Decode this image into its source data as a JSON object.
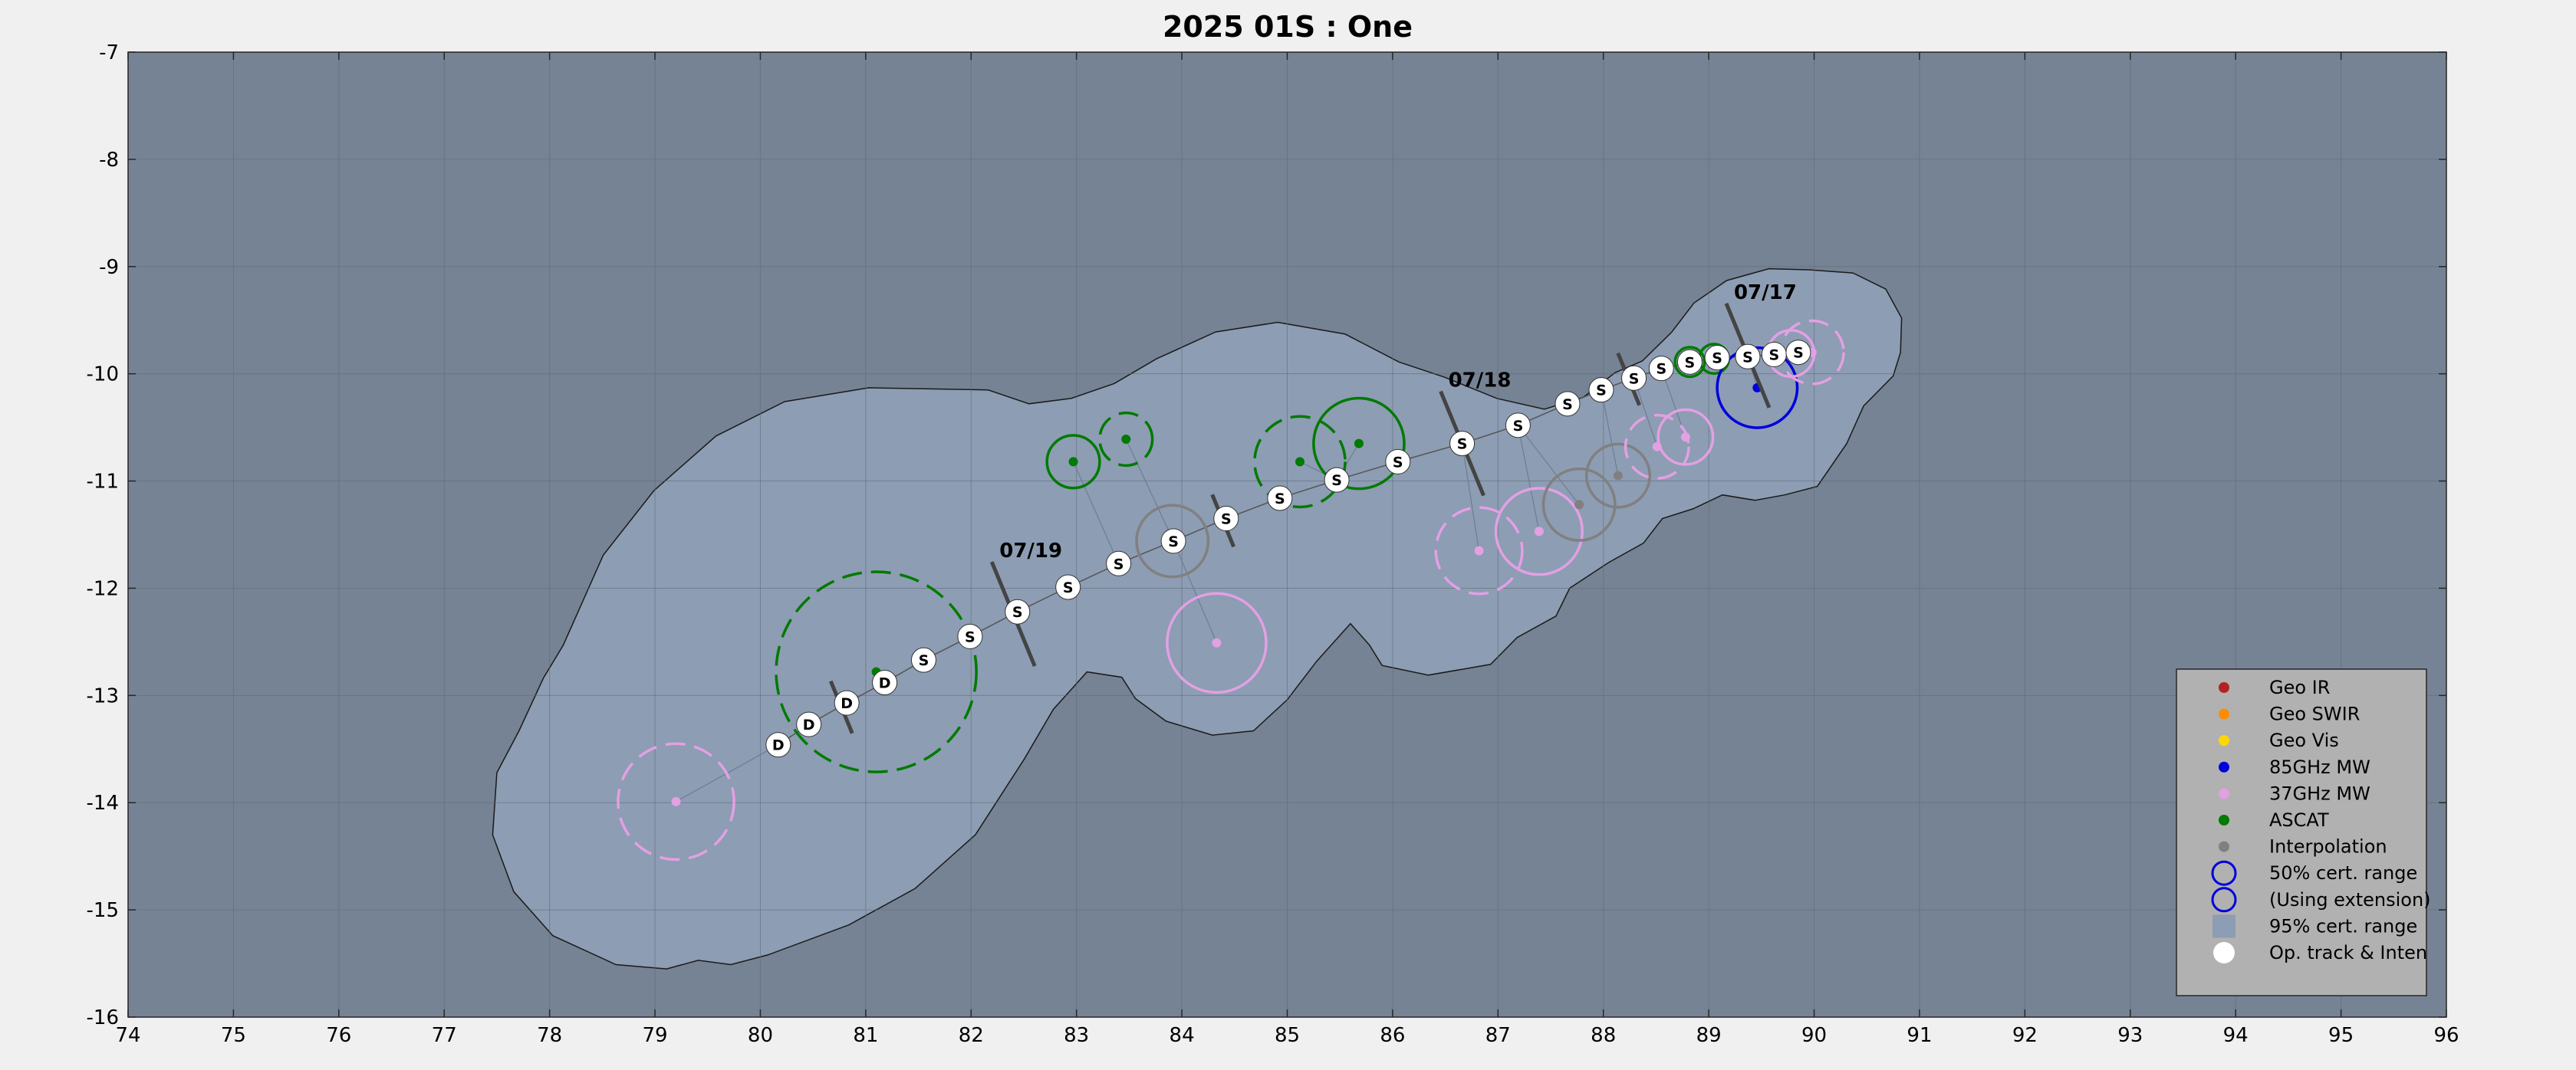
{
  "chart_data": {
    "type": "scatter",
    "title": "2025  01S :  One",
    "xlim": [
      74,
      96
    ],
    "ylim": [
      -16,
      -7
    ],
    "xticks": [
      "74",
      "75",
      "76",
      "77",
      "78",
      "79",
      "80",
      "81",
      "82",
      "83",
      "84",
      "85",
      "86",
      "87",
      "88",
      "89",
      "90",
      "91",
      "92",
      "93",
      "94",
      "95",
      "96"
    ],
    "yticks": [
      "-7",
      "-8",
      "-9",
      "-10",
      "-11",
      "-12",
      "-13",
      "-14",
      "-15",
      "-16"
    ],
    "grid": true,
    "colors": {
      "figure_bg": "#f0f0f0",
      "axes_bg": "#768394",
      "cert95": "#8d9db3",
      "grid": "#5f6b79",
      "geo_ir": "#b22222",
      "geo_swir": "#ff8c00",
      "geo_vis": "#ffd700",
      "mw85": "#0000dd",
      "mw37": "#e3a0e3",
      "ascat": "#007a00",
      "interp": "#808080",
      "track": "#ffffff"
    },
    "track": [
      {
        "x": 89.37,
        "y": -9.84,
        "label": "S"
      },
      {
        "x": 89.62,
        "y": -9.82,
        "label": "S"
      },
      {
        "x": 89.85,
        "y": -9.8,
        "label": "S"
      },
      {
        "x": 89.08,
        "y": -9.85,
        "label": "S"
      },
      {
        "x": 88.82,
        "y": -9.89,
        "label": "S"
      },
      {
        "x": 88.55,
        "y": -9.95,
        "label": "S"
      },
      {
        "x": 88.29,
        "y": -10.04,
        "label": "S"
      },
      {
        "x": 87.98,
        "y": -10.15,
        "label": "S"
      },
      {
        "x": 87.66,
        "y": -10.28,
        "label": "S"
      },
      {
        "x": 87.19,
        "y": -10.48,
        "label": "S"
      },
      {
        "x": 86.66,
        "y": -10.65,
        "label": "S"
      },
      {
        "x": 86.05,
        "y": -10.82,
        "label": "S"
      },
      {
        "x": 85.47,
        "y": -10.99,
        "label": "S"
      },
      {
        "x": 84.93,
        "y": -11.16,
        "label": "S"
      },
      {
        "x": 84.42,
        "y": -11.35,
        "label": "S"
      },
      {
        "x": 83.92,
        "y": -11.56,
        "label": "S"
      },
      {
        "x": 83.4,
        "y": -11.77,
        "label": "S"
      },
      {
        "x": 82.92,
        "y": -11.99,
        "label": "S"
      },
      {
        "x": 82.44,
        "y": -12.22,
        "label": "S"
      },
      {
        "x": 81.99,
        "y": -12.45,
        "label": "S"
      },
      {
        "x": 81.55,
        "y": -12.67,
        "label": "S"
      },
      {
        "x": 81.18,
        "y": -12.88,
        "label": "D"
      },
      {
        "x": 80.82,
        "y": -13.07,
        "label": "D"
      },
      {
        "x": 80.46,
        "y": -13.27,
        "label": "D"
      },
      {
        "x": 80.17,
        "y": -13.46,
        "label": "D"
      }
    ],
    "ticks_daily": [
      {
        "x": 89.37,
        "y": -9.83,
        "label": "07/17"
      },
      {
        "x": 86.66,
        "y": -10.65,
        "label": "07/18"
      },
      {
        "x": 82.4,
        "y": -12.24,
        "label": "07/19"
      }
    ],
    "short_ticks": [
      {
        "x": 88.24,
        "y": -10.05
      },
      {
        "x": 84.39,
        "y": -11.37
      },
      {
        "x": 80.77,
        "y": -13.11
      }
    ],
    "fixes": [
      {
        "type": "mw37",
        "x": 79.2,
        "y": -13.99,
        "r": 0.55,
        "ext": true
      },
      {
        "type": "ascat",
        "x": 81.1,
        "y": -12.78,
        "r": 0.95,
        "ext": true
      },
      {
        "type": "ascat",
        "x": 82.97,
        "y": -10.82,
        "r": 0.25,
        "ext": false
      },
      {
        "type": "ascat",
        "x": 83.47,
        "y": -10.61,
        "r": 0.25,
        "ext": true
      },
      {
        "type": "interp",
        "x": 83.91,
        "y": -11.56,
        "r": 0.34,
        "ext": false
      },
      {
        "type": "mw37",
        "x": 84.33,
        "y": -12.51,
        "r": 0.47,
        "ext": false
      },
      {
        "type": "ascat",
        "x": 85.12,
        "y": -10.82,
        "r": 0.43,
        "ext": true
      },
      {
        "type": "ascat",
        "x": 85.68,
        "y": -10.65,
        "r": 0.43,
        "ext": false
      },
      {
        "type": "mw37",
        "x": 86.82,
        "y": -11.65,
        "r": 0.41,
        "ext": true
      },
      {
        "type": "mw37",
        "x": 87.39,
        "y": -11.47,
        "r": 0.41,
        "ext": false
      },
      {
        "type": "interp",
        "x": 87.77,
        "y": -11.22,
        "r": 0.34,
        "ext": false
      },
      {
        "type": "interp",
        "x": 88.14,
        "y": -10.95,
        "r": 0.3,
        "ext": false
      },
      {
        "type": "mw37",
        "x": 88.51,
        "y": -10.68,
        "r": 0.3,
        "ext": true
      },
      {
        "type": "mw37",
        "x": 88.78,
        "y": -10.59,
        "r": 0.26,
        "ext": false
      },
      {
        "type": "ascat",
        "x": 88.82,
        "y": -9.89,
        "r": 0.14,
        "ext": false
      },
      {
        "type": "ascat",
        "x": 89.05,
        "y": -9.86,
        "r": 0.14,
        "ext": false
      },
      {
        "type": "mw85",
        "x": 89.46,
        "y": -10.13,
        "r": 0.38,
        "ext": false
      },
      {
        "type": "mw37",
        "x": 89.78,
        "y": -9.81,
        "r": 0.22,
        "ext": false
      },
      {
        "type": "mw37",
        "x": 89.98,
        "y": -9.8,
        "r": 0.3,
        "ext": true
      }
    ],
    "cert95_outline": [
      [
        88.65,
        -9.61
      ],
      [
        88.86,
        -9.34
      ],
      [
        89.17,
        -9.13
      ],
      [
        89.57,
        -9.02
      ],
      [
        89.95,
        -9.03
      ],
      [
        90.37,
        -9.06
      ],
      [
        90.68,
        -9.21
      ],
      [
        90.83,
        -9.48
      ],
      [
        90.82,
        -9.8
      ],
      [
        90.75,
        -10.02
      ],
      [
        90.47,
        -10.3
      ],
      [
        90.31,
        -10.65
      ],
      [
        90.03,
        -11.05
      ],
      [
        89.72,
        -11.13
      ],
      [
        89.44,
        -11.18
      ],
      [
        89.13,
        -11.13
      ],
      [
        88.85,
        -11.26
      ],
      [
        88.56,
        -11.35
      ],
      [
        88.38,
        -11.58
      ],
      [
        88.05,
        -11.76
      ],
      [
        87.68,
        -12.0
      ],
      [
        87.55,
        -12.26
      ],
      [
        87.18,
        -12.46
      ],
      [
        86.93,
        -12.71
      ],
      [
        86.34,
        -12.81
      ],
      [
        85.9,
        -12.72
      ],
      [
        85.78,
        -12.53
      ],
      [
        85.6,
        -12.33
      ],
      [
        85.28,
        -12.68
      ],
      [
        85.0,
        -13.04
      ],
      [
        84.68,
        -13.33
      ],
      [
        84.29,
        -13.37
      ],
      [
        83.85,
        -13.24
      ],
      [
        83.56,
        -13.03
      ],
      [
        83.43,
        -12.83
      ],
      [
        83.1,
        -12.78
      ],
      [
        82.78,
        -13.13
      ],
      [
        82.5,
        -13.6
      ],
      [
        82.04,
        -14.3
      ],
      [
        81.47,
        -14.8
      ],
      [
        80.84,
        -15.14
      ],
      [
        80.07,
        -15.42
      ],
      [
        79.72,
        -15.51
      ],
      [
        79.41,
        -15.47
      ],
      [
        79.11,
        -15.55
      ],
      [
        78.63,
        -15.51
      ],
      [
        78.03,
        -15.24
      ],
      [
        77.66,
        -14.83
      ],
      [
        77.46,
        -14.3
      ],
      [
        77.5,
        -13.72
      ],
      [
        77.71,
        -13.33
      ],
      [
        77.94,
        -12.84
      ],
      [
        78.13,
        -12.53
      ],
      [
        78.51,
        -11.69
      ],
      [
        78.99,
        -11.09
      ],
      [
        79.58,
        -10.58
      ],
      [
        80.23,
        -10.26
      ],
      [
        81.03,
        -10.13
      ],
      [
        82.16,
        -10.15
      ],
      [
        82.55,
        -10.28
      ],
      [
        82.95,
        -10.23
      ],
      [
        83.36,
        -10.09
      ],
      [
        83.76,
        -9.86
      ],
      [
        84.32,
        -9.61
      ],
      [
        84.91,
        -9.52
      ],
      [
        85.55,
        -9.63
      ],
      [
        86.06,
        -9.89
      ],
      [
        86.49,
        -10.03
      ],
      [
        86.99,
        -10.23
      ],
      [
        87.44,
        -10.33
      ],
      [
        87.81,
        -10.22
      ],
      [
        88.11,
        -9.99
      ],
      [
        88.37,
        -9.88
      ],
      [
        88.65,
        -9.61
      ]
    ],
    "legend": [
      {
        "key": "geo_ir",
        "label": "Geo IR",
        "kind": "dot"
      },
      {
        "key": "geo_swir",
        "label": "Geo SWIR",
        "kind": "dot"
      },
      {
        "key": "geo_vis",
        "label": "Geo Vis",
        "kind": "dot"
      },
      {
        "key": "mw85",
        "label": "85GHz MW",
        "kind": "dot"
      },
      {
        "key": "mw37",
        "label": "37GHz MW",
        "kind": "dot"
      },
      {
        "key": "ascat",
        "label": "ASCAT",
        "kind": "dot"
      },
      {
        "key": "interp",
        "label": "Interpolation",
        "kind": "dot"
      },
      {
        "key": "mw85",
        "label": "50% cert. range",
        "kind": "circle"
      },
      {
        "key": "mw85",
        "label": "(Using extension)",
        "kind": "circle"
      },
      {
        "key": "cert95",
        "label": "95% cert. range",
        "kind": "square"
      },
      {
        "key": "track",
        "label": "Op. track & Inten",
        "kind": "bigdot"
      }
    ]
  }
}
